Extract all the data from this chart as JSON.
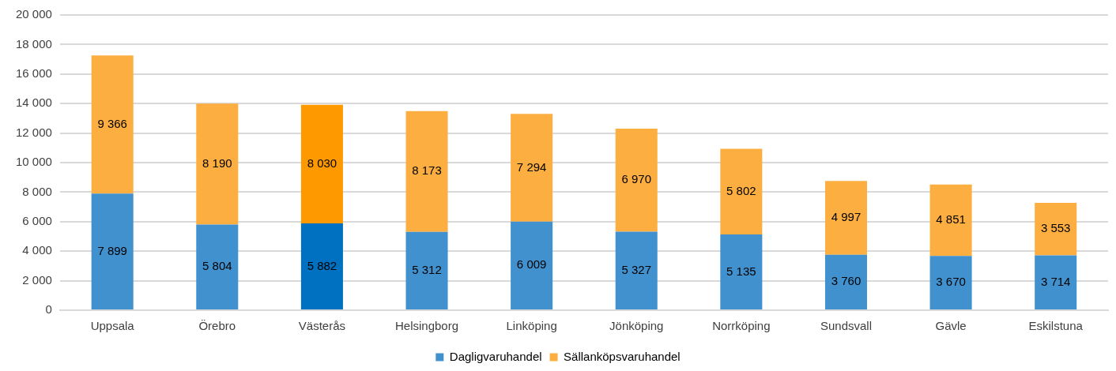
{
  "chart_data": {
    "type": "bar",
    "stacked": true,
    "categories": [
      "Uppsala",
      "Örebro",
      "Västerås",
      "Helsingborg",
      "Linköping",
      "Jönköping",
      "Norrköping",
      "Sundsvall",
      "Gävle",
      "Eskilstuna"
    ],
    "series": [
      {
        "name": "Dagligvaruhandel",
        "color": "#4191cf",
        "colors": [
          "#4191cf",
          "#4191cf",
          "#0070c0",
          "#4191cf",
          "#4191cf",
          "#4191cf",
          "#4191cf",
          "#4191cf",
          "#4191cf",
          "#4191cf"
        ],
        "values": [
          7899,
          5804,
          5882,
          5312,
          6009,
          5327,
          5135,
          3760,
          3670,
          3714
        ],
        "value_labels": [
          "7 899",
          "5 804",
          "5 882",
          "5 312",
          "6 009",
          "5 327",
          "5 135",
          "3 760",
          "3 670",
          "3 714"
        ]
      },
      {
        "name": "Sällanköpsvaruhandel",
        "color": "#fdae40",
        "colors": [
          "#fdae40",
          "#fdae40",
          "#ff9900",
          "#fdae40",
          "#fdae40",
          "#fdae40",
          "#fdae40",
          "#fdae40",
          "#fdae40",
          "#fdae40"
        ],
        "values": [
          9366,
          8190,
          8030,
          8173,
          7294,
          6970,
          5802,
          4997,
          4851,
          3553
        ],
        "value_labels": [
          "9 366",
          "8 190",
          "8 030",
          "8 173",
          "7 294",
          "6 970",
          "5 802",
          "4 997",
          "4 851",
          "3 553"
        ]
      }
    ],
    "ylim": [
      0,
      20000
    ],
    "yticks": [
      {
        "value": 0,
        "label": "0"
      },
      {
        "value": 2000,
        "label": "2 000"
      },
      {
        "value": 4000,
        "label": "4 000"
      },
      {
        "value": 6000,
        "label": "6 000"
      },
      {
        "value": 8000,
        "label": "8 000"
      },
      {
        "value": 10000,
        "label": "10 000"
      },
      {
        "value": 12000,
        "label": "12 000"
      },
      {
        "value": 14000,
        "label": "14 000"
      },
      {
        "value": 16000,
        "label": "16 000"
      },
      {
        "value": 18000,
        "label": "18 000"
      },
      {
        "value": 20000,
        "label": "20 000"
      }
    ],
    "grid": "y",
    "legend": "bottom"
  }
}
